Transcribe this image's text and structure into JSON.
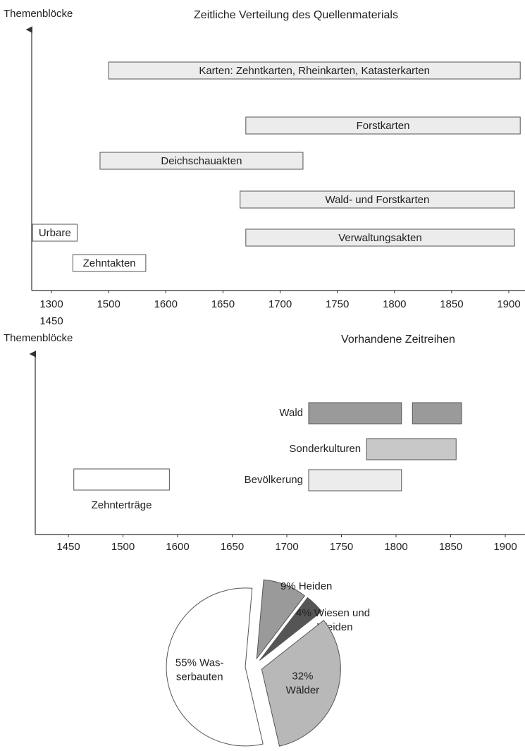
{
  "chart_data": [
    {
      "type": "timeline",
      "title": "Zeitliche Verteilung des Quellenmaterials",
      "y_label": "Themenblöcke",
      "xticks": [
        1300,
        1500,
        1600,
        1650,
        1700,
        1750,
        1800,
        1850,
        1900
      ],
      "x_sublabel": "1450",
      "series": [
        {
          "name": "Karten: Zehntkarten, Rheinkarten, Katasterkarten",
          "color": "#ececec",
          "ranges": [
            [
              1500,
              1910
            ]
          ]
        },
        {
          "name": "Forstkarten",
          "color": "#ececec",
          "ranges": [
            [
              1670,
              1910
            ]
          ]
        },
        {
          "name": "Deichschauakten",
          "color": "#ececec",
          "ranges": [
            [
              1470,
              1720
            ]
          ]
        },
        {
          "name": "Wald- und Forstkarten",
          "color": "#ececec",
          "ranges": [
            [
              1665,
              1905
            ]
          ]
        },
        {
          "name": "Urbare",
          "color": "#ffffff",
          "ranges": [
            [
              1230,
              1390
            ]
          ]
        },
        {
          "name": "Verwaltungsakten",
          "color": "#ececec",
          "ranges": [
            [
              1670,
              1905
            ]
          ]
        },
        {
          "name": "Zehntakten",
          "color": "#ffffff",
          "ranges": [
            [
              1375,
              1565
            ]
          ]
        }
      ]
    },
    {
      "type": "timeline",
      "title": "Vorhandene Zeitreihen",
      "y_label": "Themenblöcke",
      "xticks": [
        1450,
        1500,
        1600,
        1650,
        1700,
        1750,
        1800,
        1850,
        1900
      ],
      "series": [
        {
          "name": "Wald",
          "color": "#9a9a9a",
          "ranges": [
            [
              1720,
              1805
            ],
            [
              1815,
              1860
            ]
          ]
        },
        {
          "name": "Sonderkulturen",
          "color": "#c8c8c8",
          "ranges": [
            [
              1773,
              1855
            ]
          ]
        },
        {
          "name": "Bevölkerung",
          "color": "#ececec",
          "ranges": [
            [
              1720,
              1805
            ]
          ]
        },
        {
          "name": "Zehnterträge",
          "color": "#ffffff",
          "ranges": [
            [
              1455,
              1585
            ]
          ]
        }
      ]
    },
    {
      "type": "pie",
      "values": [
        9,
        4,
        32,
        55
      ],
      "labels": [
        [
          "9% Heiden"
        ],
        [
          "4% Wiesen und",
          "Weiden"
        ],
        [
          "32%",
          "Wälder"
        ],
        [
          "55% Was-",
          "serbauten"
        ]
      ],
      "colors": [
        "#9a9a9a",
        "#555555",
        "#b8b8b8",
        "#ffffff"
      ]
    }
  ]
}
